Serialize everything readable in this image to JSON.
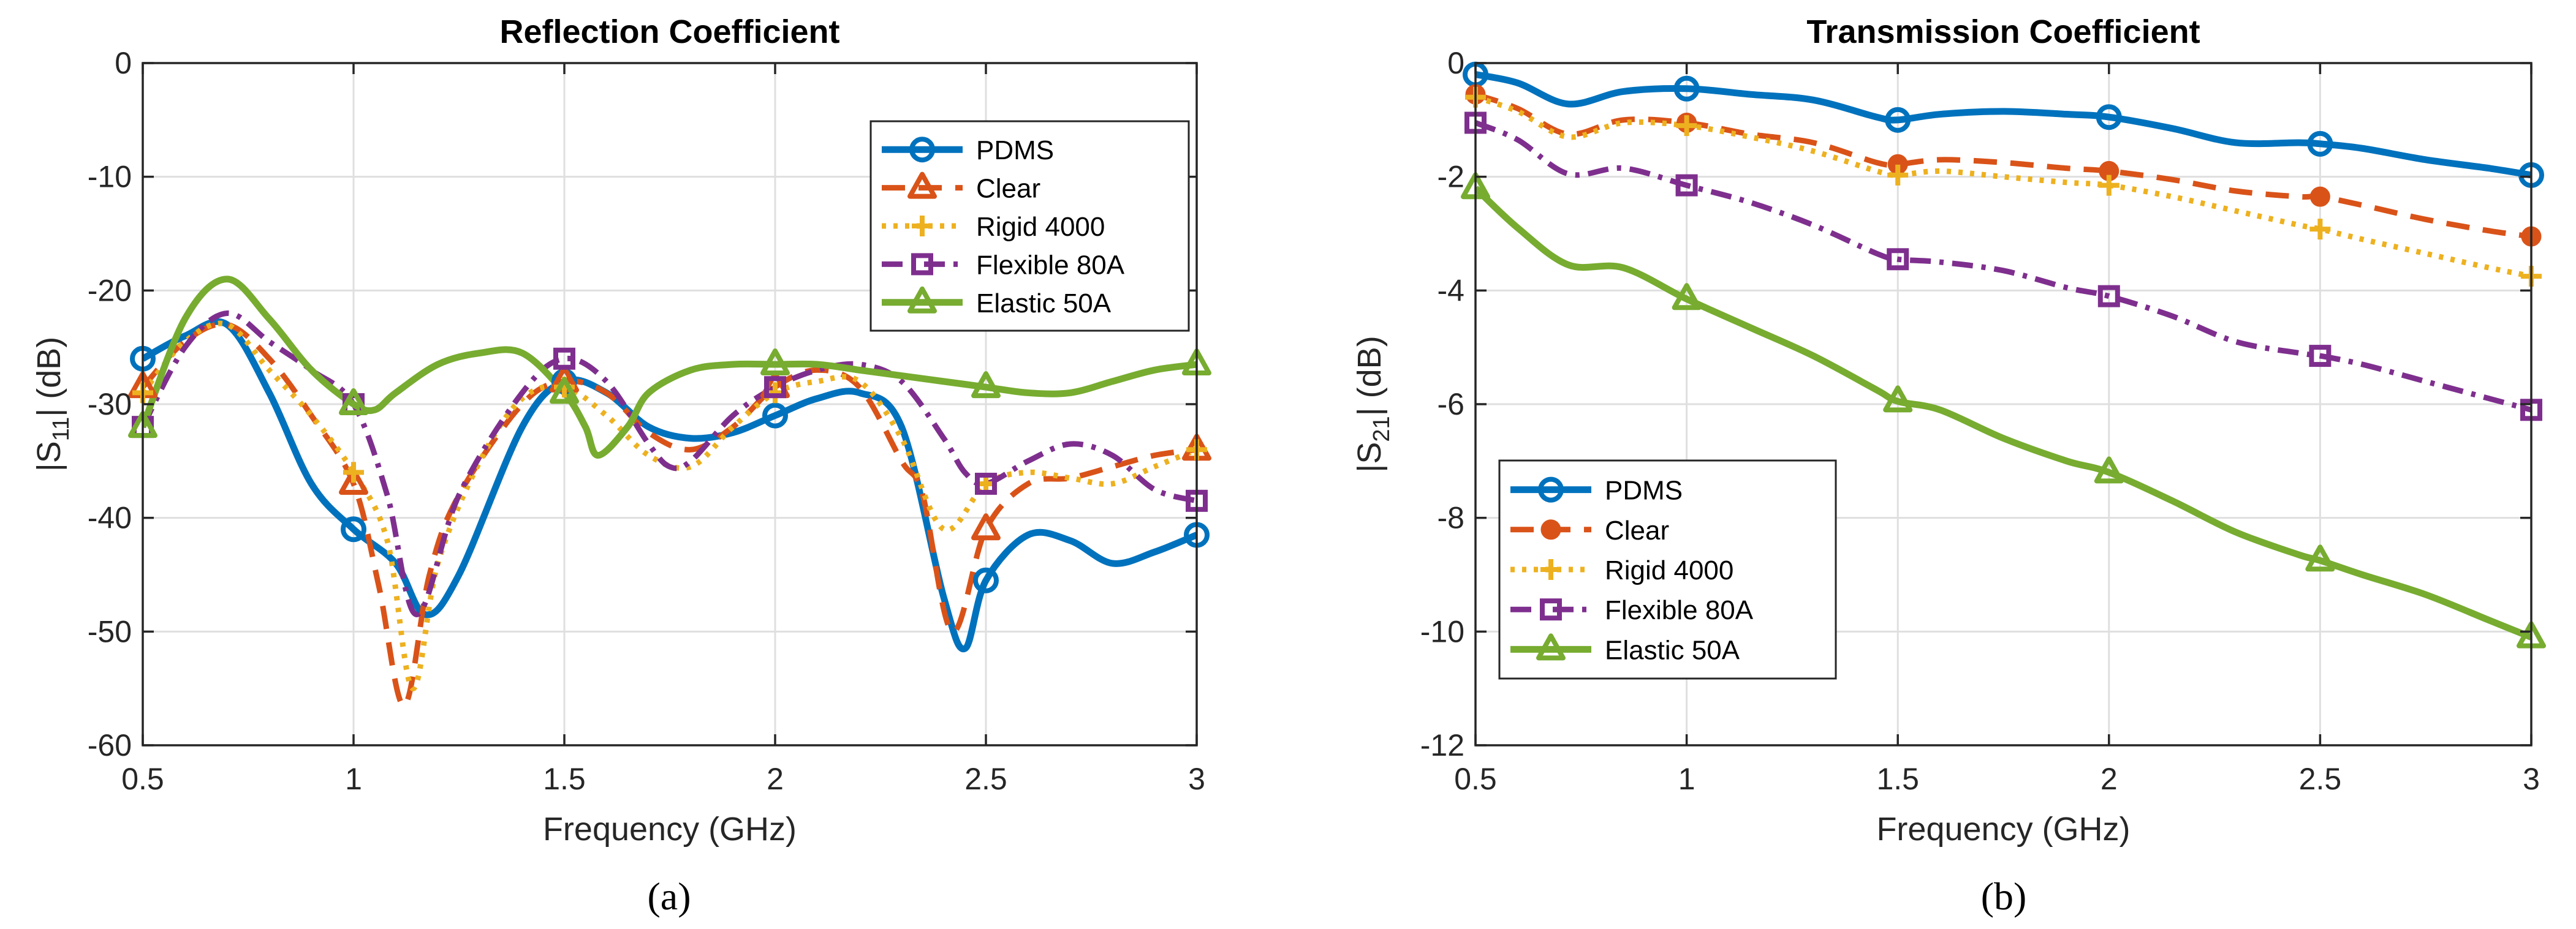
{
  "chart_data": [
    {
      "type": "line",
      "title": "Reflection Coefficient",
      "xlabel": "Frequency (GHz)",
      "ylabel_main": "|S",
      "ylabel_sub": "11",
      "ylabel_tail": "| (dB)",
      "xlim": [
        0.5,
        3
      ],
      "ylim": [
        -60,
        0
      ],
      "xticks": [
        0.5,
        1,
        1.5,
        2,
        2.5,
        3
      ],
      "xtick_labels": [
        "0.5",
        "1",
        "1.5",
        "2",
        "2.5",
        "3"
      ],
      "yticks": [
        -60,
        -50,
        -40,
        -30,
        -20,
        -10,
        0
      ],
      "ytick_labels": [
        "-60",
        "-50",
        "-40",
        "-30",
        "-20",
        "-10",
        "0"
      ],
      "grid": true,
      "legend_position": "top-right",
      "caption": "(a)",
      "series": [
        {
          "name": "PDMS",
          "color": "#0072BD",
          "dash": "solid",
          "marker": "circle",
          "x": [
            0.5,
            0.6,
            0.7,
            0.8,
            0.9,
            1.0,
            1.1,
            1.17,
            1.25,
            1.4,
            1.5,
            1.6,
            1.7,
            1.8,
            1.9,
            2.0,
            2.1,
            2.2,
            2.3,
            2.4,
            2.45,
            2.5,
            2.6,
            2.7,
            2.8,
            2.9,
            3.0
          ],
          "y": [
            -26,
            -24,
            -23,
            -29,
            -37,
            -41,
            -44,
            -48.5,
            -45,
            -32,
            -28,
            -29,
            -32,
            -33,
            -32.5,
            -31,
            -29.5,
            -29,
            -32,
            -47,
            -51.5,
            -45.5,
            -41.5,
            -42,
            -44,
            -43,
            -41.5
          ],
          "marker_x": [
            0.5,
            1.0,
            1.5,
            2.0,
            2.5,
            3.0
          ]
        },
        {
          "name": "Clear",
          "color": "#D95319",
          "dash": "dashed",
          "marker": "triangle",
          "x": [
            0.5,
            0.6,
            0.7,
            0.8,
            0.9,
            1.0,
            1.06,
            1.12,
            1.18,
            1.25,
            1.4,
            1.5,
            1.6,
            1.7,
            1.8,
            1.9,
            2.0,
            2.1,
            2.2,
            2.3,
            2.35,
            2.42,
            2.5,
            2.6,
            2.7,
            2.8,
            2.9,
            3.0
          ],
          "y": [
            -28.5,
            -24.5,
            -23,
            -26,
            -31,
            -37,
            -46,
            -56.5,
            -45,
            -38,
            -30,
            -28,
            -29,
            -32.5,
            -34,
            -32,
            -28.5,
            -27,
            -28.5,
            -35,
            -38,
            -50,
            -41,
            -37,
            -36.5,
            -35.5,
            -34.5,
            -34
          ],
          "marker_x": [
            0.5,
            1.0,
            1.5,
            2.0,
            2.5,
            3.0
          ]
        },
        {
          "name": "Rigid 4000",
          "color": "#EDB120",
          "dash": "dotted",
          "marker": "plus",
          "x": [
            0.5,
            0.6,
            0.7,
            0.8,
            0.9,
            1.0,
            1.08,
            1.14,
            1.2,
            1.3,
            1.4,
            1.5,
            1.6,
            1.7,
            1.8,
            1.9,
            2.0,
            2.1,
            2.2,
            2.3,
            2.4,
            2.5,
            2.6,
            2.7,
            2.8,
            2.9,
            3.0
          ],
          "y": [
            -29,
            -24.5,
            -23,
            -27,
            -31,
            -36,
            -42,
            -55,
            -44,
            -35,
            -29.5,
            -28.5,
            -31,
            -34.5,
            -35.5,
            -32,
            -29,
            -28,
            -28,
            -33,
            -41,
            -37,
            -36,
            -36.5,
            -37,
            -35.5,
            -34
          ],
          "marker_x": [
            0.5,
            1.0,
            1.5,
            2.0,
            2.5,
            3.0
          ]
        },
        {
          "name": "Flexible 80A",
          "color": "#7E2F8E",
          "dash": "dashdot",
          "marker": "square",
          "x": [
            0.5,
            0.6,
            0.7,
            0.8,
            0.9,
            1.0,
            1.08,
            1.15,
            1.25,
            1.4,
            1.5,
            1.6,
            1.7,
            1.75,
            1.8,
            1.9,
            2.0,
            2.1,
            2.2,
            2.3,
            2.4,
            2.45,
            2.5,
            2.6,
            2.7,
            2.8,
            2.9,
            3.0
          ],
          "y": [
            -32,
            -25,
            -22,
            -24.5,
            -27,
            -30,
            -38,
            -48.5,
            -38,
            -29,
            -26,
            -28,
            -33.5,
            -35.5,
            -35,
            -31,
            -28.5,
            -27,
            -26.5,
            -28,
            -33,
            -36,
            -37,
            -35,
            -33.5,
            -34.5,
            -37.5,
            -38.5
          ],
          "marker_x": [
            0.5,
            1.0,
            1.5,
            2.0,
            2.5,
            3.0
          ]
        },
        {
          "name": "Elastic 50A",
          "color": "#77AC30",
          "dash": "solid",
          "marker": "triangle",
          "x": [
            0.5,
            0.6,
            0.7,
            0.8,
            0.9,
            1.0,
            1.05,
            1.1,
            1.2,
            1.3,
            1.4,
            1.5,
            1.55,
            1.58,
            1.65,
            1.7,
            1.8,
            1.9,
            2.0,
            2.1,
            2.2,
            2.3,
            2.4,
            2.5,
            2.6,
            2.7,
            2.8,
            2.9,
            3.0
          ],
          "y": [
            -32,
            -22.5,
            -19,
            -22.5,
            -27,
            -30,
            -30.5,
            -29,
            -26.5,
            -25.5,
            -25.5,
            -29,
            -32,
            -34.5,
            -32,
            -29,
            -27,
            -26.5,
            -26.5,
            -26.5,
            -27,
            -27.5,
            -28,
            -28.5,
            -29,
            -29,
            -28,
            -27,
            -26.5
          ],
          "marker_x": [
            0.5,
            1.0,
            1.5,
            2.0,
            2.5,
            3.0
          ]
        }
      ]
    },
    {
      "type": "line",
      "title": "Transmission Coefficient",
      "xlabel": "Frequency (GHz)",
      "ylabel_main": "|S",
      "ylabel_sub": "21",
      "ylabel_tail": "| (dB)",
      "xlim": [
        0.5,
        3
      ],
      "ylim": [
        -12,
        0
      ],
      "xticks": [
        0.5,
        1,
        1.5,
        2,
        2.5,
        3
      ],
      "xtick_labels": [
        "0.5",
        "1",
        "1.5",
        "2",
        "2.5",
        "3"
      ],
      "yticks": [
        -12,
        -10,
        -8,
        -6,
        -4,
        -2,
        0
      ],
      "ytick_labels": [
        "-12",
        "-10",
        "-8",
        "-6",
        "-4",
        "-2",
        "0"
      ],
      "grid": true,
      "legend_position": "bottom-left",
      "caption": "(b)",
      "series": [
        {
          "name": "PDMS",
          "color": "#0072BD",
          "dash": "solid",
          "marker": "circle",
          "x": [
            0.5,
            0.6,
            0.72,
            0.85,
            1.0,
            1.15,
            1.3,
            1.45,
            1.5,
            1.6,
            1.75,
            1.9,
            2.0,
            2.15,
            2.3,
            2.45,
            2.5,
            2.6,
            2.75,
            2.9,
            3.0
          ],
          "y": [
            -0.2,
            -0.35,
            -0.72,
            -0.5,
            -0.45,
            -0.55,
            -0.65,
            -0.95,
            -1.0,
            -0.9,
            -0.85,
            -0.9,
            -0.95,
            -1.15,
            -1.4,
            -1.4,
            -1.42,
            -1.5,
            -1.7,
            -1.85,
            -1.97
          ],
          "marker_x": [
            0.5,
            1.0,
            1.5,
            2.0,
            2.5,
            3.0
          ]
        },
        {
          "name": "Clear",
          "color": "#D95319",
          "dash": "dashed",
          "marker": "dot",
          "x": [
            0.5,
            0.6,
            0.72,
            0.85,
            1.0,
            1.15,
            1.3,
            1.45,
            1.5,
            1.6,
            1.75,
            1.9,
            2.0,
            2.15,
            2.3,
            2.45,
            2.5,
            2.6,
            2.75,
            2.9,
            3.0
          ],
          "y": [
            -0.55,
            -0.8,
            -1.25,
            -1.0,
            -1.05,
            -1.25,
            -1.4,
            -1.75,
            -1.78,
            -1.7,
            -1.75,
            -1.85,
            -1.9,
            -2.05,
            -2.25,
            -2.35,
            -2.35,
            -2.5,
            -2.75,
            -2.95,
            -3.05
          ],
          "marker_x": [
            0.5,
            1.0,
            1.5,
            2.0,
            2.5,
            3.0
          ]
        },
        {
          "name": "Rigid 4000",
          "color": "#EDB120",
          "dash": "dotted",
          "marker": "plus",
          "x": [
            0.5,
            0.6,
            0.72,
            0.85,
            1.0,
            1.15,
            1.3,
            1.45,
            1.5,
            1.6,
            1.75,
            1.9,
            2.0,
            2.15,
            2.3,
            2.45,
            2.5,
            2.6,
            2.75,
            2.9,
            3.0
          ],
          "y": [
            -0.6,
            -0.85,
            -1.3,
            -1.05,
            -1.1,
            -1.3,
            -1.55,
            -1.9,
            -1.97,
            -1.9,
            -2.0,
            -2.1,
            -2.15,
            -2.35,
            -2.6,
            -2.85,
            -2.92,
            -3.1,
            -3.35,
            -3.6,
            -3.75
          ],
          "marker_x": [
            0.5,
            1.0,
            1.5,
            2.0,
            2.5,
            3.0
          ]
        },
        {
          "name": "Flexible 80A",
          "color": "#7E2F8E",
          "dash": "dashdot",
          "marker": "square",
          "x": [
            0.5,
            0.6,
            0.72,
            0.85,
            1.0,
            1.15,
            1.3,
            1.45,
            1.5,
            1.6,
            1.75,
            1.9,
            2.0,
            2.15,
            2.3,
            2.45,
            2.5,
            2.6,
            2.75,
            2.9,
            3.0
          ],
          "y": [
            -1.05,
            -1.35,
            -1.95,
            -1.85,
            -2.15,
            -2.45,
            -2.85,
            -3.35,
            -3.45,
            -3.5,
            -3.65,
            -3.95,
            -4.1,
            -4.45,
            -4.9,
            -5.1,
            -5.15,
            -5.3,
            -5.6,
            -5.9,
            -6.1
          ],
          "marker_x": [
            0.5,
            1.0,
            1.5,
            2.0,
            2.5,
            3.0
          ]
        },
        {
          "name": "Elastic 50A",
          "color": "#77AC30",
          "dash": "solid",
          "marker": "triangle",
          "x": [
            0.5,
            0.6,
            0.72,
            0.85,
            1.0,
            1.15,
            1.3,
            1.45,
            1.5,
            1.6,
            1.75,
            1.9,
            2.0,
            2.15,
            2.3,
            2.45,
            2.5,
            2.6,
            2.75,
            2.9,
            3.0
          ],
          "y": [
            -2.2,
            -2.9,
            -3.55,
            -3.6,
            -4.15,
            -4.65,
            -5.15,
            -5.75,
            -5.95,
            -6.1,
            -6.6,
            -7.0,
            -7.2,
            -7.7,
            -8.25,
            -8.65,
            -8.75,
            -9.0,
            -9.35,
            -9.8,
            -10.1
          ],
          "marker_x": [
            0.5,
            1.0,
            1.5,
            2.0,
            2.5,
            3.0
          ]
        }
      ]
    }
  ]
}
